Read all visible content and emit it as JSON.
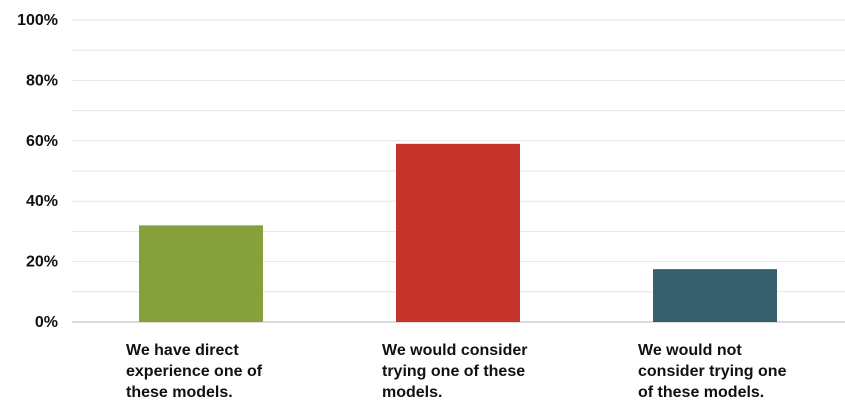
{
  "chart_data": {
    "type": "bar",
    "categories": [
      "We have direct\nexperience one of\nthese models.",
      "We would consider\ntrying one of these\nmodels.",
      "We would not\nconsider trying one\nof these models."
    ],
    "values": [
      32,
      59,
      17.5
    ],
    "colors": [
      "#86a03c",
      "#c4342b",
      "#37606c"
    ],
    "ylim": [
      0,
      100
    ],
    "yticks": [
      "0%",
      "20%",
      "40%",
      "60%",
      "80%",
      "100%"
    ],
    "ytick_values": [
      0,
      20,
      40,
      60,
      80,
      100
    ],
    "gridlines": true,
    "minor_gridlines": true,
    "title": "",
    "xlabel": "",
    "ylabel": ""
  }
}
